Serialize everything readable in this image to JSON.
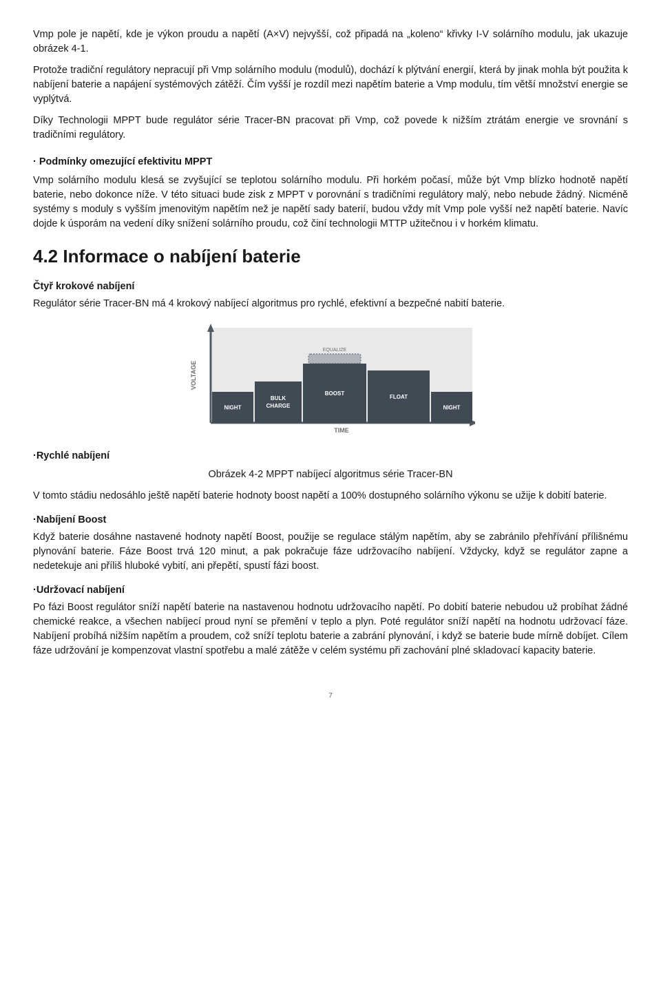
{
  "para1": "Vmp pole je napětí, kde je výkon proudu a napětí (A×V) nejvyšší, což připadá na „koleno“ křivky I-V solárního modulu, jak ukazuje obrázek 4-1.",
  "para2": "Protože tradiční regulátory nepracují při Vmp solárního modulu (modulů), dochází k plýtvání energií, která by jinak mohla být použita k nabíjení baterie a napájení systémových zátěží. Čím vyšší je rozdíl mezi napětím baterie a Vmp modulu, tím větší množství energie se vyplýtvá.",
  "para3": "Díky Technologii MPPT bude regulátor série Tracer-BN pracovat při Vmp, což povede k nižším ztrátám energie ve srovnání s tradičními regulátory.",
  "mppt_label": "· Podmínky omezující efektivitu MPPT",
  "para4": "Vmp solárního modulu klesá se zvyšující se teplotou solárního modulu. Při horkém počasí, může být Vmp blízko hodnotě napětí baterie, nebo dokonce níže. V této situaci bude zisk z MPPT v porovnání s tradičními regulátory malý, nebo nebude žádný. Nicméně systémy s moduly s vyšším jmenovitým napětím než je napětí sady baterií, budou vždy mít Vmp pole vyšší než napětí baterie. Navíc dojde k úsporám na vedení díky snížení solárního proudu, což činí technologii MTTP užitečnou i v horkém klimatu.",
  "h2": "4.2 Informace o nabíjení baterie",
  "four_step_label": "Čtyř krokové nabíjení",
  "para5": "Regulátor série Tracer-BN má 4 krokový nabíjecí algoritmus pro rychlé, efektivní a bezpečné nabití baterie.",
  "chart": {
    "y_axis": "VOLTAGE",
    "x_axis": "TIME",
    "phases": [
      "NIGHT",
      "BULK CHARGE",
      "BOOST",
      "FLOAT",
      "NIGHT"
    ],
    "phase_widths": [
      60,
      68,
      92,
      90,
      60
    ],
    "phase_heights": [
      45,
      60,
      86,
      76,
      45
    ],
    "equalize_label": "EQUALIZE",
    "bar_fill": "#3f4a55",
    "bg_fill": "#e9e9e9",
    "axis_color": "#515a63",
    "equalize_fill": "#b0b6bb",
    "label_color": "#ffffff",
    "axis_label_color": "#6b6b6b"
  },
  "chart_caption": "Obrázek 4-2  MPPT nabíjecí algoritmus série Tracer-BN",
  "fast_label": "·Rychlé nabíjení",
  "para6": "V tomto stádiu nedosáhlo ještě napětí baterie hodnoty boost napětí a 100% dostupného solárního výkonu se užije k dobití baterie.",
  "boost_label": "·Nabíjení Boost",
  "para7": "Když baterie dosáhne nastavené hodnoty napětí Boost, použije se regulace stálým napětím, aby se zabránilo přehřívání přílišnému plynování baterie. Fáze Boost trvá 120 minut, a pak pokračuje fáze udržovacího nabíjení. Vždycky, když se regulátor zapne a nedetekuje ani příliš hluboké vybití, ani přepětí, spustí fázi boost.",
  "float_label": "·Udržovací nabíjení",
  "para8": "Po fázi Boost regulátor sníží napětí baterie na nastavenou hodnotu udržovacího napětí. Po dobití baterie nebudou už probíhat žádné chemické reakce, a všechen nabíjecí proud nyní se přemění v teplo a plyn. Poté regulátor sníží napětí na hodnotu udržovací fáze. Nabíjení probíhá nižším napětím a proudem, což sníží teplotu baterie a zabrání plynování, i když se baterie bude mírně dobíjet. Cílem fáze udržování je kompenzovat vlastní spotřebu a malé zátěže v celém systému při zachování plné skladovací kapacity baterie.",
  "page_num": "7"
}
